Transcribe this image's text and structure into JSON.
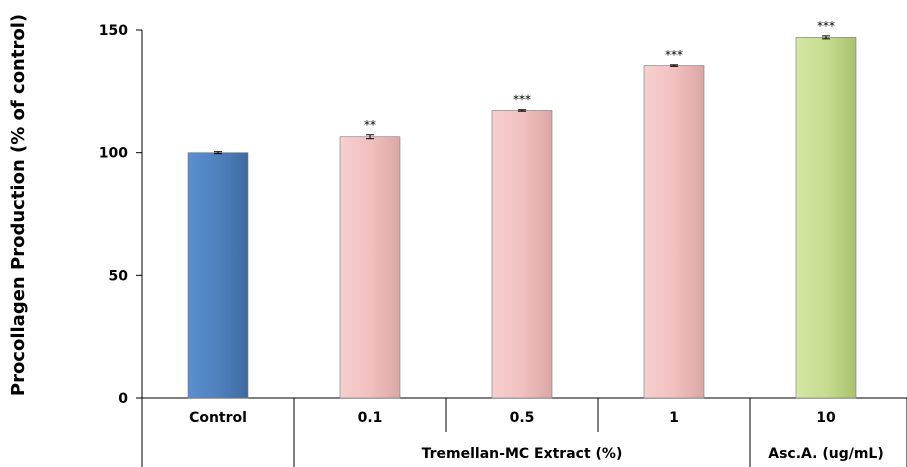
{
  "chart_data": {
    "type": "bar",
    "ylabel": "Procollagen Production (% of control)",
    "ylim": [
      0,
      150
    ],
    "yticks": [
      0,
      50,
      100,
      150
    ],
    "categories": [
      "Control",
      "0.1",
      "0.5",
      "1",
      "10"
    ],
    "values": [
      100,
      106.5,
      117.2,
      135.5,
      147
    ],
    "errors": [
      0.4,
      0.8,
      0.3,
      0.3,
      0.6
    ],
    "significance": [
      "",
      "**",
      "***",
      "***",
      "***"
    ],
    "group_labels": [
      {
        "label": "Tremellan-MC Extract (%)",
        "categories": [
          "0.1",
          "0.5",
          "1"
        ]
      },
      {
        "label": "Asc.A. (ug/mL)",
        "categories": [
          "10"
        ]
      }
    ],
    "colors": {
      "control": "#4f81bd",
      "extract": "#f2c0c0",
      "ascorbic": "#c6dc8f"
    },
    "grid": false,
    "legend": "none"
  }
}
